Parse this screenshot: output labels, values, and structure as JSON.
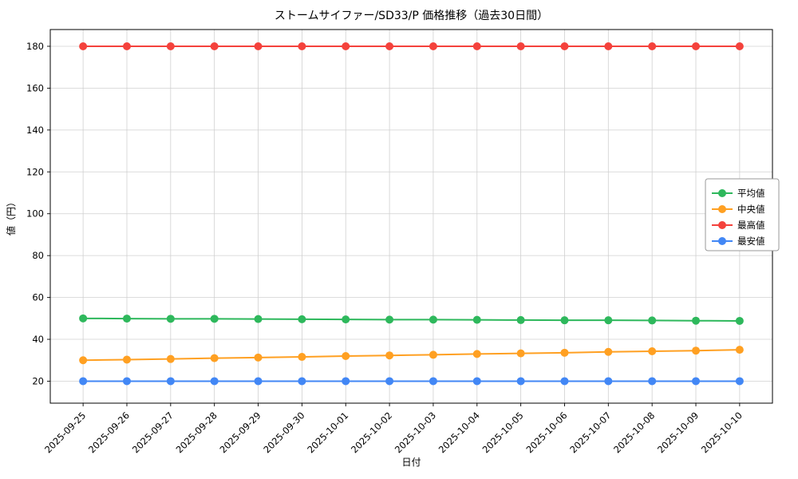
{
  "figure": {
    "background": "#ffffff",
    "grid_color": "#d0d0d0",
    "spine_color": "#000000",
    "legend_border_color": "#999999"
  },
  "chart_data": {
    "type": "line",
    "title": "ストームサイファー/SD33/P 価格推移（過去30日間）",
    "xlabel": "日付",
    "ylabel": "値（円）",
    "grid": true,
    "legend_position": "center right",
    "ylim": [
      9.5,
      188
    ],
    "yticks": [
      20,
      40,
      60,
      80,
      100,
      120,
      140,
      160,
      180
    ],
    "x": [
      "2025-09-25",
      "2025-09-26",
      "2025-09-27",
      "2025-09-28",
      "2025-09-29",
      "2025-09-30",
      "2025-10-01",
      "2025-10-02",
      "2025-10-03",
      "2025-10-04",
      "2025-10-05",
      "2025-10-06",
      "2025-10-07",
      "2025-10-08",
      "2025-10-09",
      "2025-10-10"
    ],
    "series": [
      {
        "key": "average",
        "name": "平均値",
        "color": "#2eb85c",
        "values": [
          50.0,
          49.9,
          49.8,
          49.8,
          49.7,
          49.6,
          49.5,
          49.4,
          49.4,
          49.3,
          49.2,
          49.1,
          49.1,
          49.0,
          48.9,
          48.8
        ]
      },
      {
        "key": "median",
        "name": "中央値",
        "color": "#ffa022",
        "values": [
          30.0,
          30.3,
          30.6,
          31.0,
          31.3,
          31.6,
          32.0,
          32.3,
          32.6,
          33.0,
          33.3,
          33.6,
          34.0,
          34.3,
          34.6,
          35.0
        ]
      },
      {
        "key": "max",
        "name": "最高値",
        "color": "#f4423c",
        "values": [
          180,
          180,
          180,
          180,
          180,
          180,
          180,
          180,
          180,
          180,
          180,
          180,
          180,
          180,
          180,
          180
        ]
      },
      {
        "key": "min",
        "name": "最安値",
        "color": "#4287f5",
        "values": [
          20,
          20,
          20,
          20,
          20,
          20,
          20,
          20,
          20,
          20,
          20,
          20,
          20,
          20,
          20,
          20
        ]
      }
    ]
  }
}
